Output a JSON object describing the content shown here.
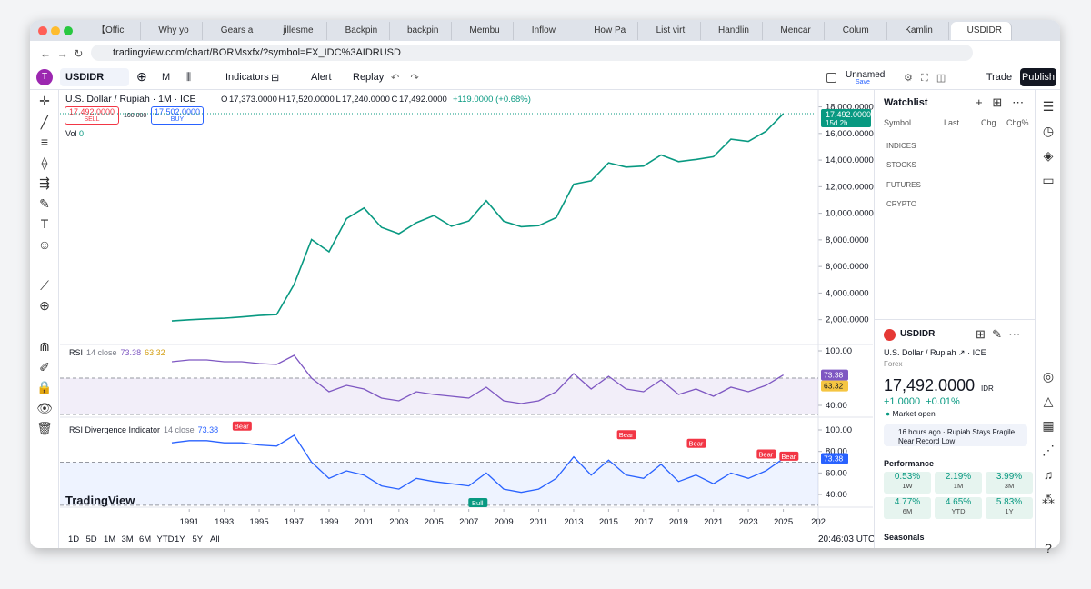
{
  "tabs": [
    "【Offici",
    "Why yo",
    "Gears a",
    "jillesme",
    "Backpin",
    "backpin",
    "Membu",
    "Inflow",
    "How Pa",
    "List virt",
    "Handlin",
    "Mencar",
    "Colum",
    "Kamlin",
    "USDIDR"
  ],
  "url": "tradingview.com/chart/BORMsxfx/?symbol=FX_IDC%3AIDRUSD",
  "toolbar": {
    "symbol": "USDIDR",
    "interval": "M",
    "indicators": "Indicators",
    "alert": "Alert",
    "replay": "Replay",
    "layout": "Unnamed",
    "save": "Save",
    "trade": "Trade",
    "publish": "Publish"
  },
  "legend": {
    "name": "U.S. Dollar / Rupiah · 1M · ICE",
    "ohlc": "O 17,373.0000  H 17,520.0000  L 17,240.0000  C 17,492.0000",
    "change": "+119.0000 (+0.68%)",
    "sell_price": "17,492.0000",
    "sell": "SELL",
    "spread": "100,000",
    "buy_price": "17,502.0000",
    "buy": "BUY",
    "vol": "Vol",
    "vol_value": "0"
  },
  "price_chart": {
    "type": "line",
    "x": [
      1990,
      1991,
      1992,
      1993,
      1994,
      1995,
      1996,
      1997,
      1998,
      1999,
      2000,
      2001,
      2002,
      2003,
      2004,
      2005,
      2006,
      2007,
      2008,
      2009,
      2010,
      2011,
      2012,
      2013,
      2014,
      2015,
      2016,
      2017,
      2018,
      2019,
      2020,
      2021,
      2022,
      2023,
      2024,
      2025
    ],
    "values": [
      1900,
      1990,
      2060,
      2110,
      2200,
      2310,
      2380,
      4650,
      8025,
      7100,
      9595,
      10400,
      8940,
      8465,
      9290,
      9830,
      9020,
      9419,
      10950,
      9400,
      8991,
      9068,
      9670,
      12189,
      12440,
      13795,
      13473,
      13548,
      14380,
      13883,
      14050,
      14253,
      15568,
      15397,
      16162,
      17492
    ],
    "xlim": [
      1983.6,
      2027
    ],
    "xticks": [
      1991,
      1993,
      1995,
      1997,
      1999,
      2001,
      2003,
      2005,
      2007,
      2009,
      2011,
      2013,
      2015,
      2017,
      2019,
      2021,
      2023,
      2025,
      {
        "value": 2027,
        "label": "202"
      }
    ],
    "ylim": [
      200,
      19200
    ],
    "yticks": [
      {
        "value": 18000,
        "label": "18,000.0000"
      },
      {
        "value": 16000,
        "label": "16,000.0000"
      },
      {
        "value": 14000,
        "label": "14,000.0000"
      },
      {
        "value": 12000,
        "label": "12,000.0000"
      },
      {
        "value": 10000,
        "label": "10,000.0000"
      },
      {
        "value": 8000,
        "label": "8,000.0000"
      },
      {
        "value": 6000,
        "label": "6,000.0000"
      },
      {
        "value": 4000,
        "label": "4,000.0000"
      },
      {
        "value": 2000,
        "label": "2,000.0000"
      }
    ],
    "last_price": "17,492.0000",
    "countdown": "15d 2h",
    "color": "#089981"
  },
  "rsi": {
    "title": "RSI",
    "params": "14 close",
    "value": "73.38",
    "ma": "63.32",
    "color": "#7e57c2",
    "values": [
      88,
      90,
      90,
      88,
      88,
      86,
      85,
      95,
      70,
      55,
      62,
      58,
      48,
      45,
      55,
      52,
      50,
      48,
      60,
      45,
      42,
      45,
      55,
      75,
      58,
      72,
      58,
      55,
      68,
      52,
      58,
      50,
      60,
      55,
      62,
      73.38
    ],
    "ylim": [
      29,
      106
    ],
    "band": [
      30,
      70
    ],
    "yticks": [
      {
        "value": 100,
        "label": "100.00"
      },
      {
        "value": 40,
        "label": "40.00"
      }
    ]
  },
  "divergence": {
    "title": "RSI Divergence Indicator",
    "params": "14 close",
    "value": "73.38",
    "color": "#2962ff",
    "ylim": [
      29.9,
      109.3
    ],
    "band": [
      30,
      70
    ],
    "yticks": [
      {
        "value": 100,
        "label": "100.00"
      },
      {
        "value": 80,
        "label": "80.00"
      },
      {
        "value": 60,
        "label": "60.00"
      },
      {
        "value": 40,
        "label": "40.00"
      }
    ],
    "annotations": [
      {
        "text": "Bear",
        "year": 1994,
        "value": 96
      },
      {
        "text": "Bear",
        "year": 2016,
        "value": 88
      },
      {
        "text": "Bear",
        "year": 2020,
        "value": 80
      },
      {
        "text": "Bear",
        "year": 2024,
        "value": 70
      },
      {
        "text": "Bear",
        "year": 2025.3,
        "value": 68
      },
      {
        "text": "Bull",
        "year": 2007.5,
        "value": 40
      }
    ]
  },
  "watermark": "TradingView",
  "timeframes": [
    "1D",
    "5D",
    "1M",
    "3M",
    "6M",
    "YTD",
    "1Y",
    "5Y",
    "All"
  ],
  "time": "20:46:03 UTC",
  "watchlist": {
    "title": "Watchlist",
    "columns": [
      "Symbol",
      "Last",
      "Chg",
      "Chg%"
    ],
    "groups": [
      "INDICES",
      "STOCKS",
      "FUTURES",
      "CRYPTO"
    ]
  },
  "details": {
    "symbol": "USDIDR",
    "name": "U.S. Dollar / Rupiah",
    "exchange": "ICE",
    "type": "Forex",
    "price": "17,492.0000",
    "currency": "IDR",
    "change": "+1.0000",
    "change_pct": "+0.01%",
    "status": "Market open",
    "news": "16 hours ago · Rupiah Stays Fragile Near Record Low",
    "performance_title": "Performance",
    "performance": [
      {
        "value": "0.53%",
        "period": "1W"
      },
      {
        "value": "2.19%",
        "period": "1M"
      },
      {
        "value": "3.99%",
        "period": "3M"
      },
      {
        "value": "4.77%",
        "period": "6M"
      },
      {
        "value": "4.65%",
        "period": "YTD"
      },
      {
        "value": "5.83%",
        "period": "1Y"
      }
    ],
    "seasonals": "Seasonals"
  }
}
